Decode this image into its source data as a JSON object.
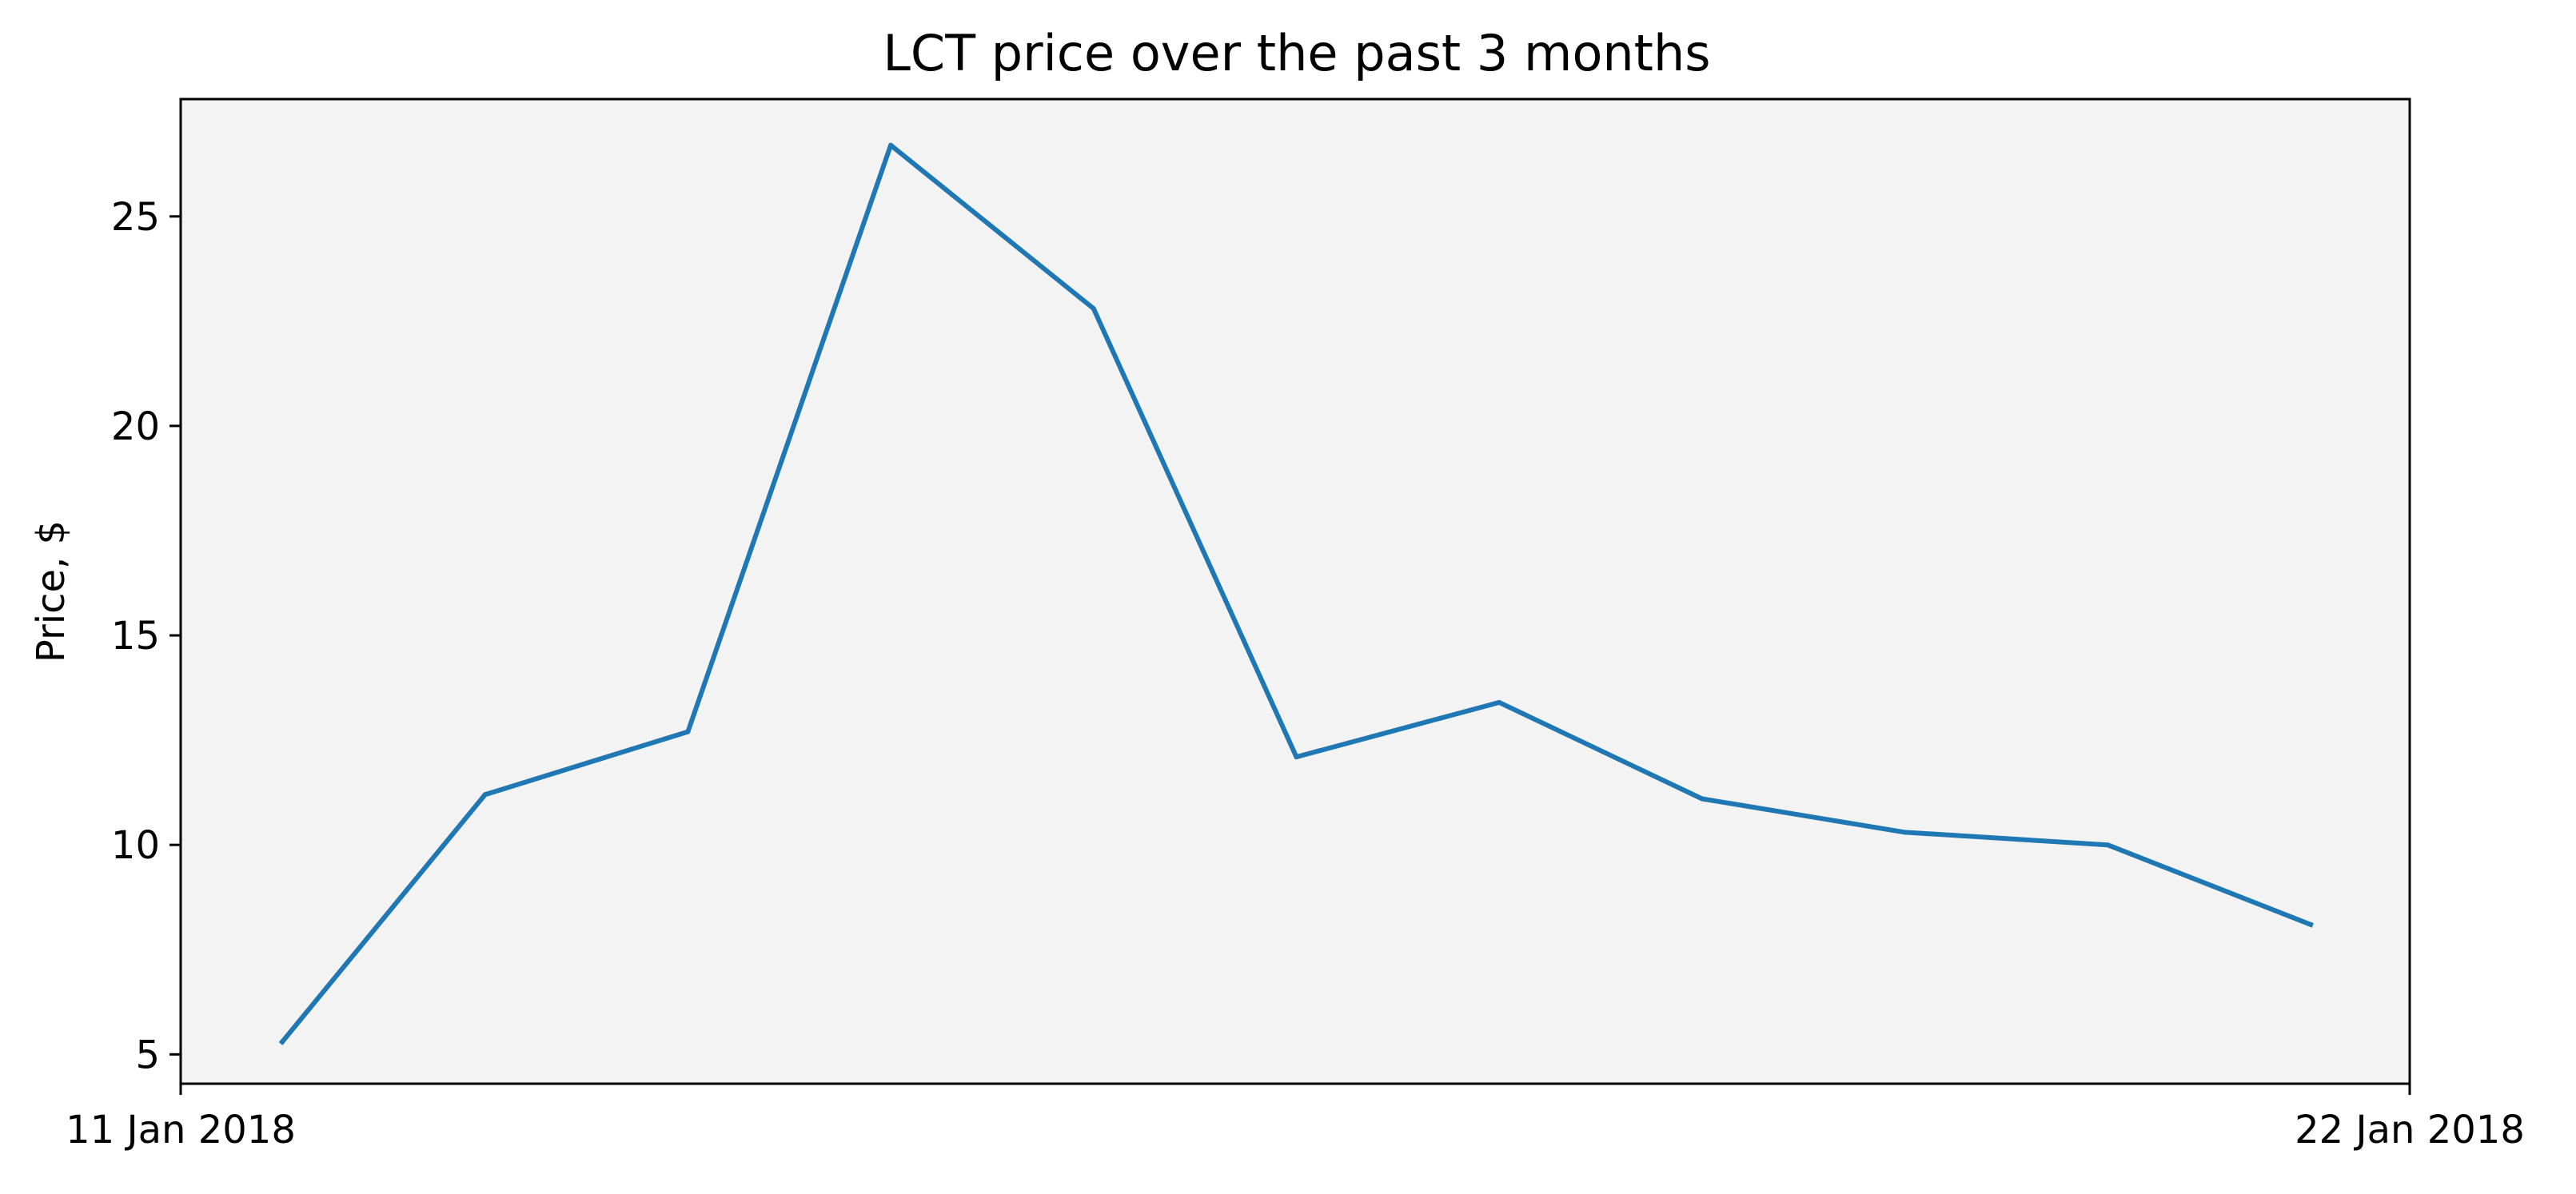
{
  "chart_data": {
    "type": "line",
    "title": "LCT price over the past 3 months",
    "xlabel": "",
    "ylabel": "Price, $",
    "x_ticks": [
      "11 Jan 2018",
      "22 Jan 2018"
    ],
    "x": [
      "11 Jan 2018",
      "12 Jan 2018",
      "13 Jan 2018",
      "14 Jan 2018",
      "15 Jan 2018",
      "16 Jan 2018",
      "17 Jan 2018",
      "18 Jan 2018",
      "19 Jan 2018",
      "20 Jan 2018",
      "21 Jan 2018"
    ],
    "y_ticks": [
      5,
      10,
      15,
      20,
      25
    ],
    "ylim": [
      4.3,
      27.8
    ],
    "grid": false,
    "series": [
      {
        "values": [
          5.3,
          11.2,
          12.7,
          26.7,
          22.8,
          12.1,
          13.4,
          11.1,
          10.3,
          10.0,
          8.1
        ]
      }
    ],
    "colors": {
      "line": "#1f77b4",
      "plot_background": "#f3f3f3",
      "axes": "#000000"
    }
  }
}
